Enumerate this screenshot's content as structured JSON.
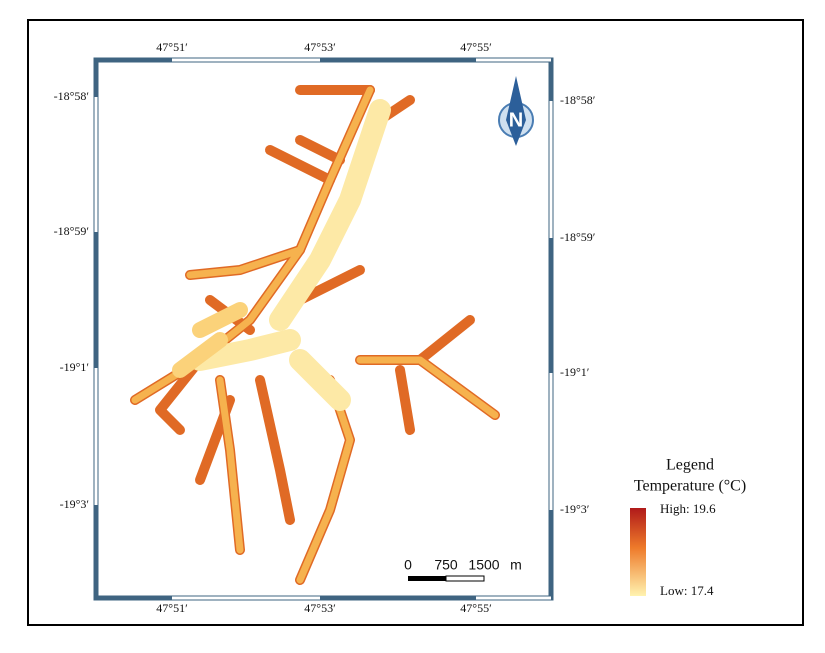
{
  "map": {
    "top_labels": [
      "47°51′",
      "47°53′",
      "47°55′"
    ],
    "bottom_labels": [
      "47°51′",
      "47°53′",
      "47°55′"
    ],
    "left_labels": [
      "-18°58′",
      "-18°59′",
      "-19°1′",
      "-19°3′"
    ],
    "right_labels": [
      "-18°58′",
      "-18°59′",
      "-19°1′",
      "-19°3′"
    ],
    "north": "N",
    "scale_bar": [
      "0",
      "750",
      "1500",
      "m"
    ],
    "legend": {
      "title": "Legend",
      "subtitle": "Temperature (°C)",
      "high": "High: 19.6",
      "low": "Low: 17.4"
    }
  }
}
